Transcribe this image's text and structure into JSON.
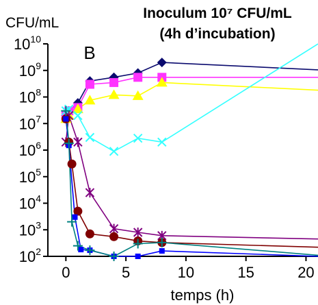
{
  "chart_data": {
    "type": "line",
    "title": "Inoculum 10⁷ CFU/mL",
    "subtitle": "(4h d’incubation)",
    "panel_label": "B",
    "ylabel": "CFU/mL",
    "xlabel": "temps (h)",
    "xlim": [
      -1.5,
      21
    ],
    "ylim": [
      100,
      10000000000
    ],
    "yscale": "log",
    "x_ticks": [
      0,
      5,
      10,
      15,
      20
    ],
    "x_tick_labels": [
      "0",
      "5",
      "10",
      "15",
      "20"
    ],
    "y_ticks": [
      100,
      1000,
      10000,
      100000,
      1000000,
      10000000,
      100000000,
      1000000000,
      10000000000
    ],
    "y_tick_bases": [
      "10",
      "10",
      "10",
      "10",
      "10",
      "10",
      "10",
      "10",
      "10"
    ],
    "y_tick_exponents": [
      "2",
      "3",
      "4",
      "5",
      "6",
      "7",
      "8",
      "9",
      "10"
    ],
    "series": [
      {
        "color": "#0a0a6e",
        "marker": "diamond",
        "x": [
          0,
          0.25,
          1,
          2,
          4,
          6,
          8
        ],
        "y": [
          20000000,
          30000000,
          60000000,
          400000000,
          550000000,
          800000000,
          2000000000
        ],
        "extension_y": 1050000000
      },
      {
        "color": "#ff33ff",
        "marker": "square",
        "x": [
          0,
          0.25,
          1,
          2,
          4,
          6,
          8
        ],
        "y": [
          20000000,
          30000000,
          40000000,
          300000000,
          350000000,
          550000000,
          550000000
        ],
        "extension_y": 550000000
      },
      {
        "color": "#ffff00",
        "marker": "triangle",
        "x": [
          0,
          0.25,
          1,
          2,
          4,
          6,
          8
        ],
        "y": [
          15000000,
          20000000,
          35000000,
          75000000,
          120000000,
          110000000,
          350000000
        ],
        "extension_y": 180000000
      },
      {
        "color": "#33ffff",
        "marker": "x",
        "x": [
          0,
          0.25,
          1,
          2,
          4,
          6,
          8
        ],
        "y": [
          30000000,
          35000000,
          20000000,
          3000000,
          900000,
          2800000,
          2000000
        ],
        "extension_y": 1300000000000000000000
      },
      {
        "color": "#800080",
        "marker": "star",
        "x": [
          0,
          0.25,
          1,
          2,
          4,
          6,
          8
        ],
        "y": [
          2000000,
          20000000,
          2000000,
          25000,
          1100,
          800,
          600
        ],
        "extension_y": 450
      },
      {
        "color": "#800000",
        "marker": "circle",
        "x": [
          0,
          0.25,
          0.5,
          1,
          2,
          4,
          6,
          8
        ],
        "y": [
          15000000,
          2000000,
          300000,
          5000,
          700,
          550,
          380,
          330
        ],
        "extension_y": 220
      },
      {
        "color": "#0000ff",
        "marker": "small-square",
        "x": [
          0,
          0.25,
          0.75,
          1.25,
          2,
          4,
          6,
          8
        ],
        "y": [
          15000000,
          1500000,
          3000,
          180,
          170,
          95,
          90,
          160
        ],
        "extension_y": 100
      },
      {
        "color": "#008080",
        "marker": "plus",
        "x": [
          0,
          0.25,
          0.5,
          1,
          2,
          4,
          6,
          8
        ],
        "y": [
          30000000,
          1800000,
          2000,
          250,
          170,
          95,
          300,
          330
        ],
        "extension_y": 110
      }
    ]
  }
}
